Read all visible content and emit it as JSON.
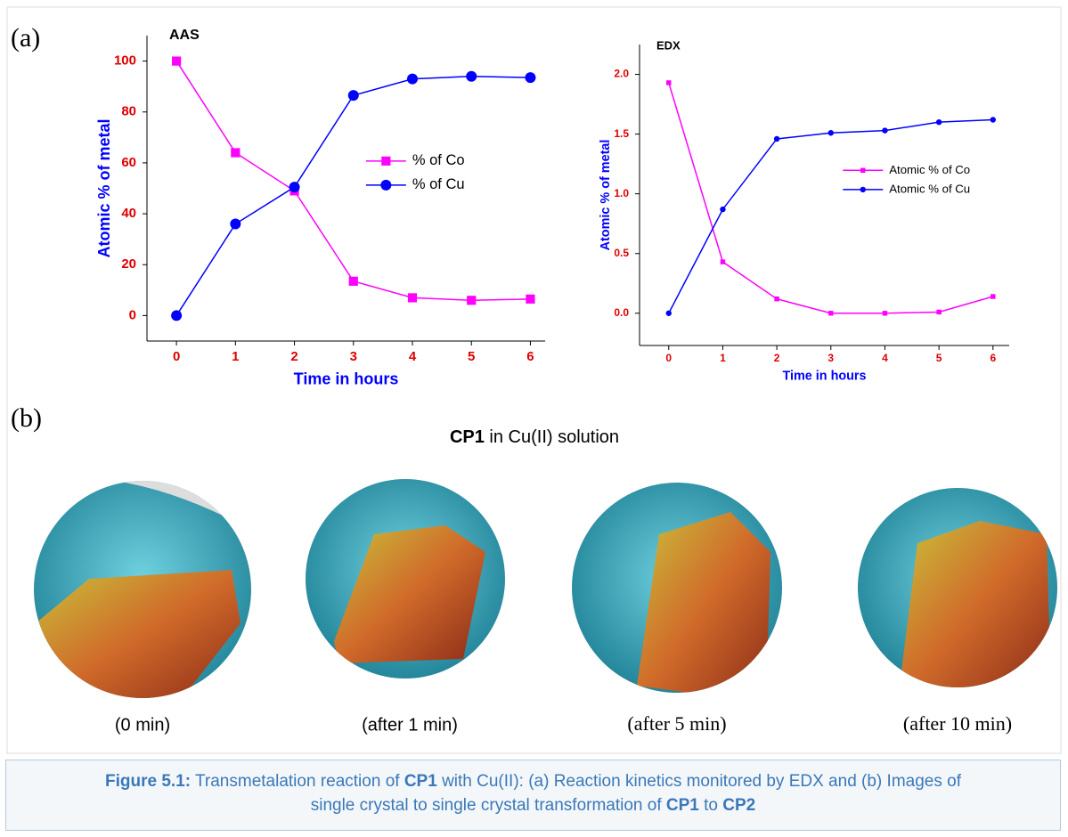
{
  "panel_labels": [
    "(a)",
    "(b)"
  ],
  "chart_data": [
    {
      "type": "line",
      "title": "AAS",
      "x_label": "Time in hours",
      "y_label": "Atomic % of metal",
      "x": [
        0,
        1,
        2,
        3,
        4,
        5,
        6
      ],
      "series": [
        {
          "name": "% of Co",
          "color": "#ff00ff",
          "marker": "square",
          "values": [
            100,
            64,
            49,
            13.5,
            7,
            6,
            6.5
          ]
        },
        {
          "name": "% of Cu",
          "color": "#0000ff",
          "marker": "circle",
          "values": [
            0,
            36,
            50.5,
            86.5,
            93,
            94,
            93.5
          ]
        }
      ],
      "xlim": [
        -0.5,
        6.25
      ],
      "xticks": [
        0,
        1,
        2,
        3,
        4,
        5,
        6
      ],
      "ylim": [
        -10,
        110
      ],
      "yticks": [
        0,
        20,
        40,
        60,
        80,
        100
      ],
      "legend": "center right",
      "tick_label_color": "#e00000",
      "axis_label_color": "#0000ff"
    },
    {
      "type": "line",
      "title": "EDX",
      "x_label": "Time in hours",
      "y_label": "Atomic % of metal",
      "x": [
        0,
        1,
        2,
        3,
        4,
        5,
        6
      ],
      "series": [
        {
          "name": "Atomic % of Co",
          "color": "#ff00ff",
          "marker": "square",
          "values": [
            1.93,
            0.43,
            0.12,
            0,
            0,
            0.01,
            0.14
          ]
        },
        {
          "name": "Atomic % of Cu",
          "color": "#0000ff",
          "marker": "circle",
          "values": [
            0,
            0.87,
            1.46,
            1.51,
            1.53,
            1.6,
            1.62
          ]
        }
      ],
      "xlim": [
        -0.54,
        6.3
      ],
      "xticks": [
        0,
        1,
        2,
        3,
        4,
        5,
        6
      ],
      "ylim": [
        -0.27,
        2.25
      ],
      "yticks": [
        {
          "value": 0,
          "label": "0.0"
        },
        0.5,
        {
          "value": 1,
          "label": "1.0"
        },
        1.5,
        {
          "value": 2,
          "label": "2.0"
        }
      ],
      "legend": "center right",
      "tick_label_color": "#e00000",
      "axis_label_color": "#0000ff"
    }
  ],
  "image_panel": {
    "title": [
      {
        "text": "CP1",
        "bold": true
      },
      {
        "text": " in Cu(II) solution",
        "bold": false
      }
    ],
    "captions": [
      "(0 min)",
      "(after 1 min)",
      "(after 5 min)",
      "(after 10 min)"
    ]
  },
  "figure_caption": [
    {
      "text": "Figure 5.1:",
      "bold": true
    },
    {
      "text": " Transmetalation reaction of ",
      "bold": false
    },
    {
      "text": "CP1",
      "bold": true
    },
    {
      "text": " with Cu(II): (a) Reaction kinetics monitored by EDX and (b) Images of single crystal to single crystal transformation of ",
      "bold": false
    },
    {
      "text": "CP1",
      "bold": true
    },
    {
      "text": " to ",
      "bold": false
    },
    {
      "text": "CP2",
      "bold": true
    }
  ]
}
